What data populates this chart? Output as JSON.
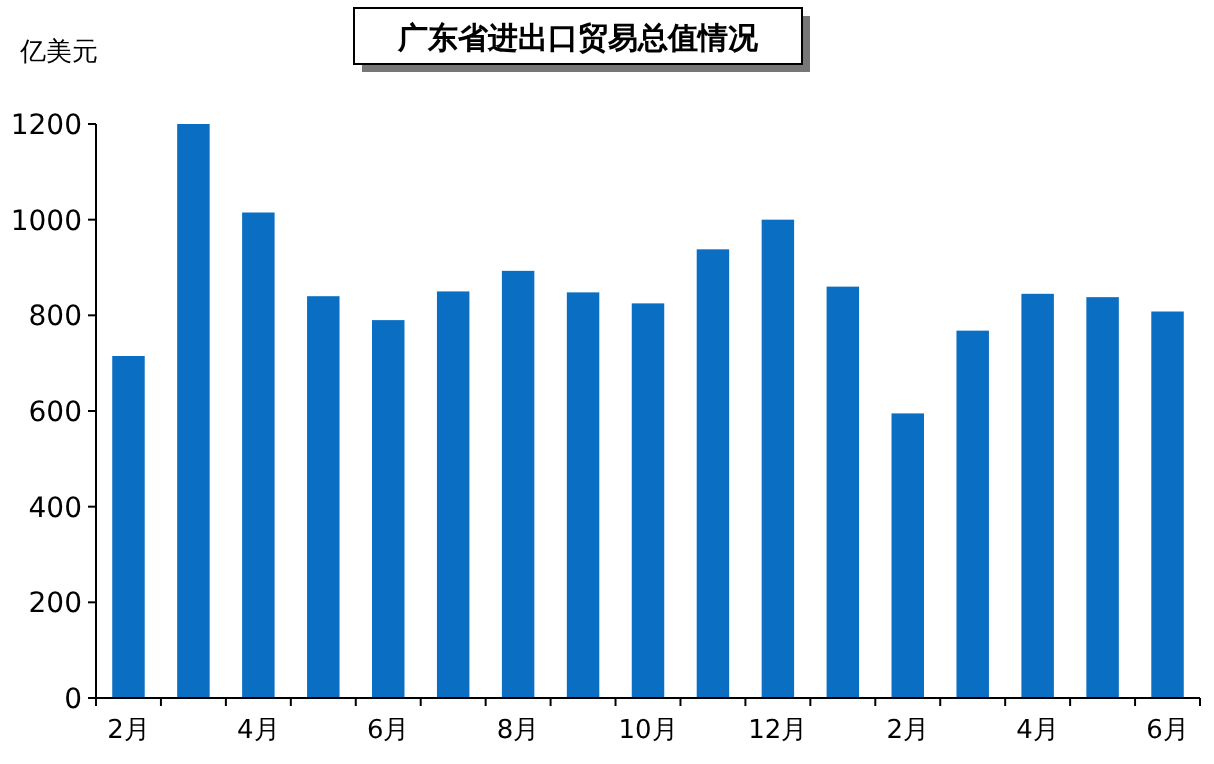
{
  "chart_data": {
    "type": "bar",
    "title": "广东省进出口贸易总值情况",
    "ylabel": "亿美元",
    "categories": [
      "2月",
      null,
      "4月",
      null,
      "6月",
      null,
      "8月",
      null,
      "10月",
      null,
      "12月",
      null,
      "2月",
      null,
      "4月",
      null,
      "6月"
    ],
    "values": [
      715,
      1200,
      1015,
      840,
      790,
      850,
      893,
      848,
      825,
      938,
      1000,
      860,
      595,
      768,
      845,
      838,
      808
    ],
    "color": "#0a6fc2",
    "ylim": [
      0,
      1200
    ],
    "yticks": [
      0,
      200,
      400,
      600,
      800,
      1000,
      1200
    ],
    "grid": false
  }
}
